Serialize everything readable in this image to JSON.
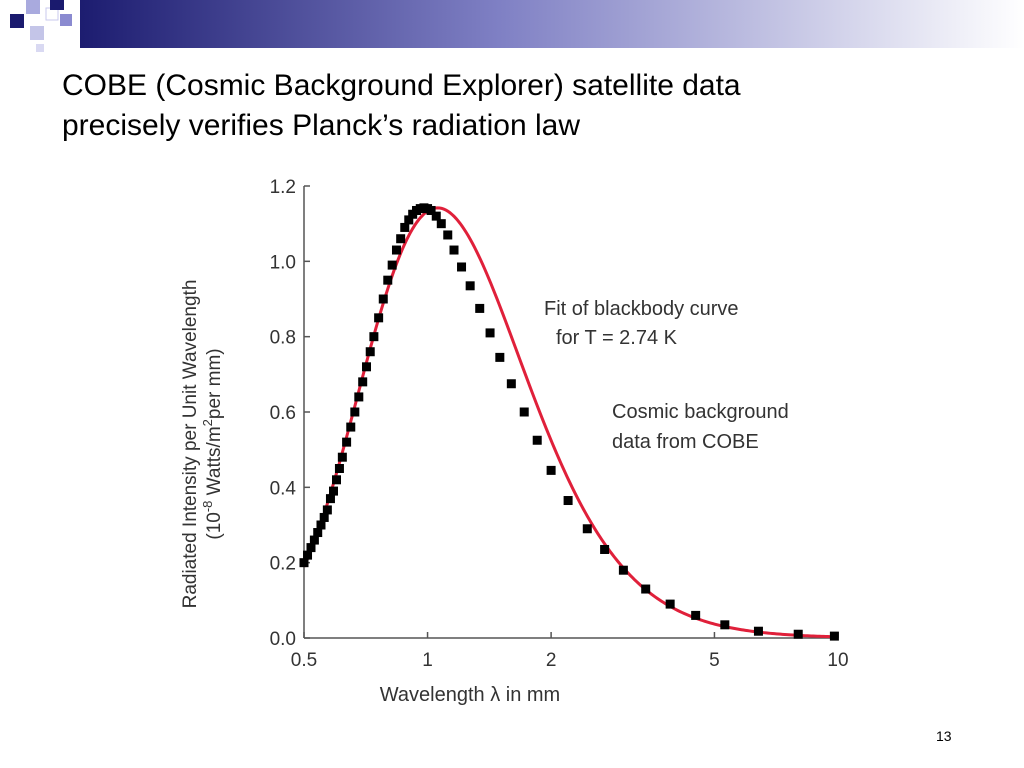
{
  "slide": {
    "title_line1": "COBE (Cosmic Background Explorer) satellite data",
    "title_line2": "precisely verifies Planck’s radiation law",
    "number": "13",
    "header_colors": [
      "#1a1a6e",
      "#8a8ad0",
      "#ffffff"
    ]
  },
  "chart_data": {
    "type": "scatter",
    "xscale": "log",
    "xlim": [
      0.5,
      10
    ],
    "ylim": [
      0,
      1.2
    ],
    "x_ticks": [
      0.5,
      1,
      2,
      5,
      10
    ],
    "x_tick_labels": [
      "0.5",
      "1",
      "2",
      "5",
      "10"
    ],
    "y_ticks": [
      0,
      0.2,
      0.4,
      0.6,
      0.8,
      1.0,
      1.2
    ],
    "y_tick_labels": [
      "0.0",
      "0.2",
      "0.4",
      "0.6",
      "0.8",
      "1.0",
      "1.2"
    ],
    "xlabel": "Wavelength λ in mm",
    "ylabel_line1": "Radiated Intensity per Unit Wavelength",
    "ylabel_line2_a": "(10",
    "ylabel_line2_sup1": "-8",
    "ylabel_line2_b": " Watts/m",
    "ylabel_line2_sup2": "2",
    "ylabel_line2_c": "per mm)",
    "grid": false,
    "fit": {
      "temperature_K": 2.74,
      "color": "#e0203a",
      "label_line1": "Fit of blackbody curve",
      "label_line2": "for T = 2.74 K"
    },
    "data_label_line1": "Cosmic background",
    "data_label_line2": "data from COBE",
    "marker_color": "#000000",
    "series": [
      {
        "x": [
          0.5,
          0.51,
          0.52,
          0.53,
          0.54,
          0.55,
          0.56,
          0.57,
          0.58,
          0.59,
          0.6,
          0.61,
          0.62,
          0.635,
          0.65,
          0.665,
          0.68,
          0.695,
          0.71,
          0.725,
          0.74,
          0.76,
          0.78,
          0.8,
          0.82,
          0.84,
          0.86,
          0.88,
          0.9,
          0.92,
          0.94,
          0.96,
          0.98,
          1.0,
          1.02,
          1.05,
          1.08,
          1.12,
          1.16,
          1.21,
          1.27,
          1.34,
          1.42,
          1.5,
          1.6,
          1.72,
          1.85,
          2.0,
          2.2,
          2.45,
          2.7,
          3.0,
          3.4,
          3.9,
          4.5,
          5.3,
          6.4,
          8.0,
          9.8
        ],
        "y": [
          0.2,
          0.22,
          0.24,
          0.26,
          0.28,
          0.3,
          0.32,
          0.34,
          0.37,
          0.39,
          0.42,
          0.45,
          0.48,
          0.52,
          0.56,
          0.6,
          0.64,
          0.68,
          0.72,
          0.76,
          0.8,
          0.85,
          0.9,
          0.95,
          0.99,
          1.03,
          1.06,
          1.09,
          1.11,
          1.125,
          1.135,
          1.14,
          1.142,
          1.14,
          1.135,
          1.12,
          1.1,
          1.07,
          1.03,
          0.985,
          0.935,
          0.875,
          0.81,
          0.745,
          0.675,
          0.6,
          0.525,
          0.445,
          0.365,
          0.29,
          0.235,
          0.18,
          0.13,
          0.09,
          0.06,
          0.035,
          0.018,
          0.01,
          0.005
        ]
      }
    ]
  }
}
